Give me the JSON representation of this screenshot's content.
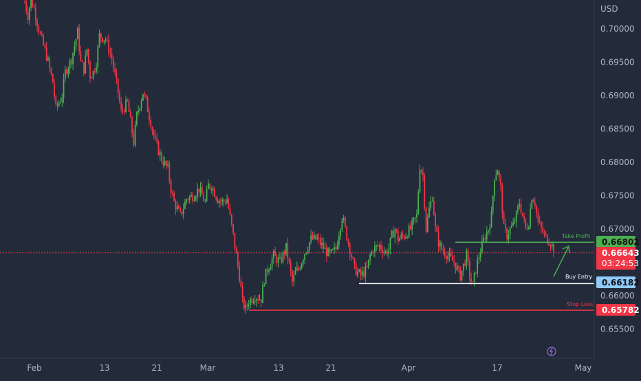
{
  "chart_data": {
    "type": "candlestick",
    "currency": "USD",
    "y_range": [
      0.6515,
      0.7045
    ],
    "y_ticks": [
      "0.70000",
      "0.69500",
      "0.69000",
      "0.68500",
      "0.68000",
      "0.67500",
      "0.67000",
      "0.66500",
      "0.66000",
      "0.65500"
    ],
    "x_ticks": [
      "Feb",
      "13",
      "21",
      "Mar",
      "13",
      "21",
      "Apr",
      "17",
      "May"
    ],
    "price_path": [
      [
        0,
        0.704
      ],
      [
        2,
        0.702
      ],
      [
        4,
        0.7045
      ],
      [
        6,
        0.703
      ],
      [
        10,
        0.699
      ],
      [
        14,
        0.696
      ],
      [
        18,
        0.692
      ],
      [
        20,
        0.688
      ],
      [
        24,
        0.69
      ],
      [
        26,
        0.6935
      ],
      [
        30,
        0.6955
      ],
      [
        32,
        0.6975
      ],
      [
        34,
        0.6995
      ],
      [
        36,
        0.695
      ],
      [
        38,
        0.694
      ],
      [
        40,
        0.697
      ],
      [
        42,
        0.693
      ],
      [
        44,
        0.6935
      ],
      [
        46,
        0.695
      ],
      [
        48,
        0.699
      ],
      [
        52,
        0.6985
      ],
      [
        56,
        0.6955
      ],
      [
        58,
        0.693
      ],
      [
        60,
        0.6905
      ],
      [
        62,
        0.6875
      ],
      [
        66,
        0.689
      ],
      [
        70,
        0.683
      ],
      [
        72,
        0.687
      ],
      [
        76,
        0.6905
      ],
      [
        78,
        0.689
      ],
      [
        80,
        0.687
      ],
      [
        84,
        0.683
      ],
      [
        88,
        0.6805
      ],
      [
        92,
        0.679
      ],
      [
        94,
        0.676
      ],
      [
        96,
        0.674
      ],
      [
        100,
        0.672
      ],
      [
        104,
        0.6745
      ],
      [
        108,
        0.675
      ],
      [
        112,
        0.676
      ],
      [
        116,
        0.674
      ],
      [
        118,
        0.6765
      ],
      [
        120,
        0.6765
      ],
      [
        124,
        0.6745
      ],
      [
        128,
        0.674
      ],
      [
        130,
        0.6745
      ],
      [
        134,
        0.669
      ],
      [
        138,
        0.663
      ],
      [
        140,
        0.659
      ],
      [
        142,
        0.658
      ],
      [
        144,
        0.6592
      ],
      [
        148,
        0.66
      ],
      [
        152,
        0.6595
      ],
      [
        154,
        0.6625
      ],
      [
        156,
        0.664
      ],
      [
        160,
        0.666
      ],
      [
        164,
        0.665
      ],
      [
        168,
        0.6672
      ],
      [
        172,
        0.662
      ],
      [
        174,
        0.6635
      ],
      [
        176,
        0.664
      ],
      [
        180,
        0.6665
      ],
      [
        184,
        0.6685
      ],
      [
        188,
        0.6685
      ],
      [
        192,
        0.6672
      ],
      [
        196,
        0.666
      ],
      [
        198,
        0.6665
      ],
      [
        200,
        0.667
      ],
      [
        204,
        0.672
      ],
      [
        206,
        0.67
      ],
      [
        208,
        0.668
      ],
      [
        212,
        0.664
      ],
      [
        216,
        0.663
      ],
      [
        220,
        0.664
      ],
      [
        222,
        0.666
      ],
      [
        224,
        0.667
      ],
      [
        228,
        0.6675
      ],
      [
        232,
        0.6665
      ],
      [
        234,
        0.667
      ],
      [
        236,
        0.669
      ],
      [
        238,
        0.67
      ],
      [
        240,
        0.6685
      ],
      [
        244,
        0.669
      ],
      [
        248,
        0.67
      ],
      [
        252,
        0.672
      ],
      [
        254,
        0.6795
      ],
      [
        256,
        0.678
      ],
      [
        258,
        0.67
      ],
      [
        260,
        0.673
      ],
      [
        262,
        0.675
      ],
      [
        264,
        0.67
      ],
      [
        266,
        0.668
      ],
      [
        268,
        0.667
      ],
      [
        272,
        0.666
      ],
      [
        276,
        0.665
      ],
      [
        278,
        0.664
      ],
      [
        280,
        0.663
      ],
      [
        282,
        0.6645
      ],
      [
        284,
        0.666
      ],
      [
        286,
        0.663
      ],
      [
        288,
        0.6615
      ],
      [
        290,
        0.664
      ],
      [
        292,
        0.666
      ],
      [
        294,
        0.6675
      ],
      [
        296,
        0.669
      ],
      [
        298,
        0.67
      ],
      [
        300,
        0.672
      ],
      [
        302,
        0.678
      ],
      [
        304,
        0.679
      ],
      [
        306,
        0.676
      ],
      [
        308,
        0.67
      ],
      [
        310,
        0.669
      ],
      [
        312,
        0.67
      ],
      [
        314,
        0.6705
      ],
      [
        316,
        0.672
      ],
      [
        318,
        0.674
      ],
      [
        320,
        0.672
      ],
      [
        322,
        0.67
      ],
      [
        324,
        0.671
      ],
      [
        326,
        0.675
      ],
      [
        328,
        0.674
      ],
      [
        330,
        0.671
      ],
      [
        332,
        0.67
      ],
      [
        334,
        0.669
      ],
      [
        336,
        0.6685
      ],
      [
        338,
        0.668
      ],
      [
        340,
        0.667
      ]
    ]
  },
  "annotations": {
    "take_profit": {
      "label": "Take Profit",
      "price": "0.66802",
      "value": 0.66802,
      "color": "#4caf50"
    },
    "buy_entry": {
      "label": "Buy Entry",
      "price": "0.66182",
      "value": 0.66182,
      "color": "#90caf9"
    },
    "stop_loss": {
      "label": "Stop Loss",
      "price": "0.65782",
      "value": 0.65782,
      "color": "#f23645"
    },
    "last_price": {
      "price": "0.66643",
      "value": 0.66643,
      "countdown": "03:24:53",
      "color": "#f23645"
    }
  },
  "colors": {
    "background": "#232b3b",
    "up_candle": "#4caf50",
    "down_candle": "#f23645",
    "axis_text": "#b2b5be",
    "border": "#363c4e"
  },
  "icons": {
    "lightning": "lightning-icon"
  }
}
